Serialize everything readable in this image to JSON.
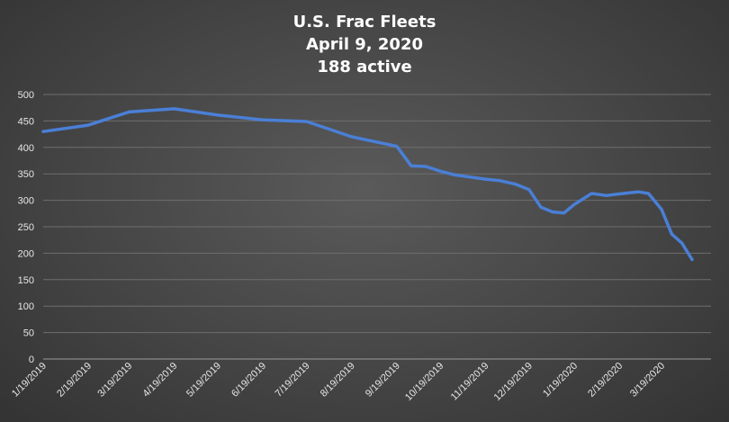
{
  "chart_data": {
    "type": "line",
    "title_lines": [
      "U.S. Frac Fleets",
      "April 9, 2020",
      "188 active"
    ],
    "xlabel": "",
    "ylabel": "",
    "ylim": [
      0,
      500
    ],
    "yticks": [
      0,
      50,
      100,
      150,
      200,
      250,
      300,
      350,
      400,
      450,
      500
    ],
    "grid": true,
    "legend": "none",
    "series_color": "#4a7fd6",
    "x_tick_labels": [
      "1/19/2019",
      "2/19/2019",
      "3/19/2019",
      "4/19/2019",
      "5/19/2019",
      "6/19/2019",
      "7/19/2019",
      "8/19/2019",
      "9/19/2019",
      "10/19/2019",
      "11/19/2019",
      "12/19/2019",
      "1/19/2020",
      "2/19/2020",
      "3/19/2020"
    ],
    "x": [
      "2019-01-19",
      "2019-02-19",
      "2019-03-19",
      "2019-04-19",
      "2019-05-19",
      "2019-06-19",
      "2019-07-19",
      "2019-08-19",
      "2019-09-19",
      "2019-09-29",
      "2019-10-09",
      "2019-10-19",
      "2019-10-29",
      "2019-11-08",
      "2019-11-19",
      "2019-11-29",
      "2019-12-09",
      "2019-12-19",
      "2019-12-27",
      "2020-01-04",
      "2020-01-12",
      "2020-01-19",
      "2020-01-31",
      "2020-02-10",
      "2020-02-19",
      "2020-03-03",
      "2020-03-10",
      "2020-03-19",
      "2020-03-26",
      "2020-04-02",
      "2020-04-09"
    ],
    "values": [
      430,
      442,
      467,
      473,
      461,
      452,
      449,
      420,
      402,
      365,
      364,
      355,
      348,
      344,
      340,
      337,
      331,
      320,
      287,
      278,
      276,
      292,
      313,
      309,
      312,
      316,
      313,
      283,
      236,
      219,
      188
    ]
  }
}
